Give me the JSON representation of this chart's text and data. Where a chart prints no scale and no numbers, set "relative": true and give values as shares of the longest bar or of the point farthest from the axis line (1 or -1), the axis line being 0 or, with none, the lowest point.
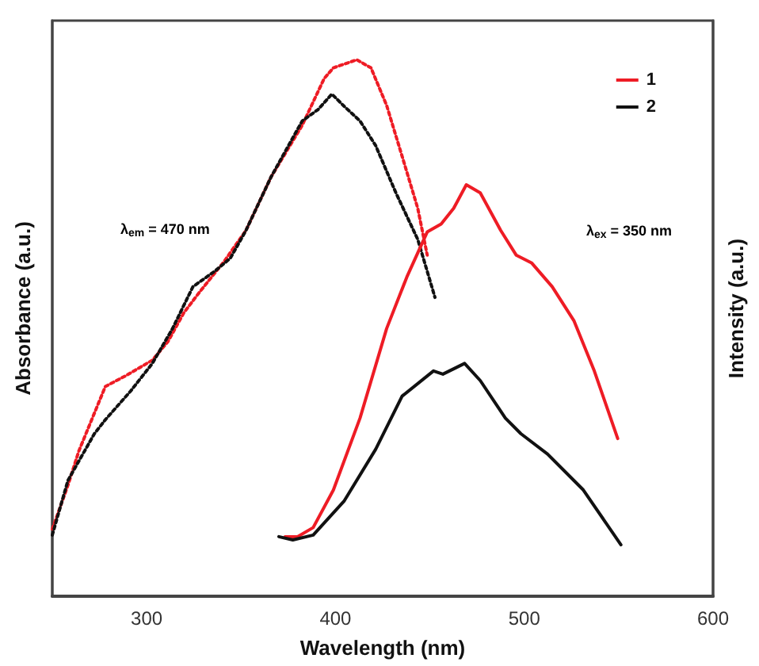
{
  "chart_data": {
    "type": "line",
    "xlabel": "Wavelength (nm)",
    "ylabel": "Absorbance (a.u.)",
    "y2label": "Intensity (a.u.)",
    "relative": true,
    "xlim": [
      250,
      600
    ],
    "xticks": [
      300,
      400,
      500,
      600
    ],
    "tick_labels": "x",
    "grid": false,
    "legend": "top right",
    "marker": "none",
    "annotations": [
      "λ$_{em}$ = 470 nm",
      "λ$_{ex}$ = 350 nm"
    ],
    "series": [
      {
        "color": "#ee1c25",
        "line_style": "dotted",
        "x": [
          250,
          258.3,
          264.1,
          278.1,
          288.9,
          303.0,
          311.3,
          319.6,
          327.8,
          341.0,
          352.6,
          365.8,
          382.4,
          394.0,
          398.9,
          411.3,
          418.8,
          427.1,
          435.4,
          443.6,
          448.6
        ],
        "values": [
          0.125,
          0.207,
          0.271,
          0.391,
          0.411,
          0.44,
          0.475,
          0.528,
          0.566,
          0.624,
          0.682,
          0.781,
          0.878,
          0.965,
          0.985,
          1,
          0.985,
          0.915,
          0.819,
          0.723,
          0.636
        ]
      },
      {
        "color": "#111111",
        "line_style": "dotted",
        "x": [
          250,
          258.3,
          272.3,
          278.1,
          291.4,
          303.0,
          313.7,
          324.5,
          336.1,
          344.3,
          352.6,
          365.8,
          382.4,
          390.7,
          398.1,
          404.7,
          413.0,
          421.3,
          432.0,
          443.6,
          452.7
        ],
        "values": [
          0.114,
          0.216,
          0.303,
          0.329,
          0.382,
          0.434,
          0.499,
          0.577,
          0.606,
          0.63,
          0.682,
          0.781,
          0.886,
          0.907,
          0.936,
          0.913,
          0.886,
          0.84,
          0.752,
          0.665,
          0.557
        ]
      },
      {
        "name": "1",
        "color": "#ee1c25",
        "line_style": "solid",
        "x": [
          373.3,
          379.9,
          388.2,
          398.9,
          413.0,
          427.1,
          437.8,
          448.6,
          456.0,
          462.6,
          469.3,
          476.7,
          487.5,
          495.7,
          504.0,
          514.8,
          526.4,
          537.1,
          549.5
        ],
        "values": [
          0.111,
          0.111,
          0.128,
          0.198,
          0.332,
          0.499,
          0.595,
          0.679,
          0.694,
          0.723,
          0.767,
          0.752,
          0.682,
          0.636,
          0.621,
          0.577,
          0.513,
          0.42,
          0.294
        ]
      },
      {
        "name": "2",
        "color": "#111111",
        "line_style": "solid",
        "x": [
          370.0,
          377.4,
          388.2,
          404.7,
          421.3,
          435.3,
          451.9,
          456.9,
          468.4,
          476.7,
          490.0,
          498.2,
          512.3,
          531.3,
          551.2
        ],
        "values": [
          0.111,
          0.105,
          0.114,
          0.178,
          0.274,
          0.373,
          0.42,
          0.414,
          0.434,
          0.402,
          0.332,
          0.303,
          0.265,
          0.198,
          0.096
        ]
      }
    ]
  }
}
